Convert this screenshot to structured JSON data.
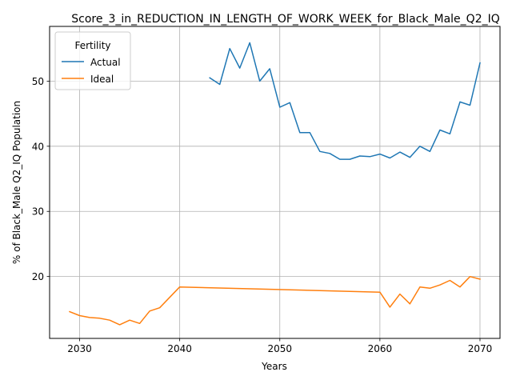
{
  "chart_data": {
    "type": "line",
    "title": "Score_3_in_REDUCTION_IN_LENGTH_OF_WORK_WEEK_for_Black_Male_Q2_IQ",
    "xlabel": "Years",
    "ylabel": "% of Black_Male Q2_IQ Population",
    "xlim": [
      2027,
      2072
    ],
    "ylim": [
      10.5,
      58.4
    ],
    "xticks": [
      2030,
      2040,
      2050,
      2060,
      2070
    ],
    "yticks": [
      20,
      30,
      40,
      50
    ],
    "grid": true,
    "legend": {
      "title": "Fertility",
      "placement": "top-left"
    },
    "series": [
      {
        "name": "Actual",
        "color": "#1f77b4",
        "x": [
          2043,
          2044,
          2045,
          2046,
          2047,
          2048,
          2049,
          2050,
          2051,
          2052,
          2053,
          2054,
          2055,
          2056,
          2057,
          2058,
          2059,
          2060,
          2061,
          2062,
          2063,
          2064,
          2065,
          2066,
          2067,
          2068,
          2069,
          2070
        ],
        "y": [
          50.5,
          49.5,
          55.0,
          52.0,
          55.9,
          50.0,
          51.9,
          46.0,
          46.7,
          42.1,
          42.1,
          39.2,
          38.9,
          38.0,
          38.0,
          38.5,
          38.4,
          38.8,
          38.2,
          39.1,
          38.3,
          40.0,
          39.2,
          42.5,
          41.9,
          46.8,
          46.3,
          52.8
        ]
      },
      {
        "name": "Ideal",
        "color": "#ff7f0e",
        "x": [
          2029,
          2030,
          2031,
          2032,
          2033,
          2034,
          2035,
          2036,
          2037,
          2038,
          2039,
          2040,
          2060,
          2061,
          2062,
          2063,
          2064,
          2065,
          2066,
          2067,
          2068,
          2069,
          2070
        ],
        "y": [
          14.6,
          14.0,
          13.7,
          13.6,
          13.3,
          12.6,
          13.3,
          12.8,
          14.7,
          15.2,
          16.8,
          18.4,
          17.6,
          15.3,
          17.3,
          15.8,
          18.4,
          18.2,
          18.7,
          19.4,
          18.4,
          20.0,
          19.6
        ]
      }
    ]
  }
}
